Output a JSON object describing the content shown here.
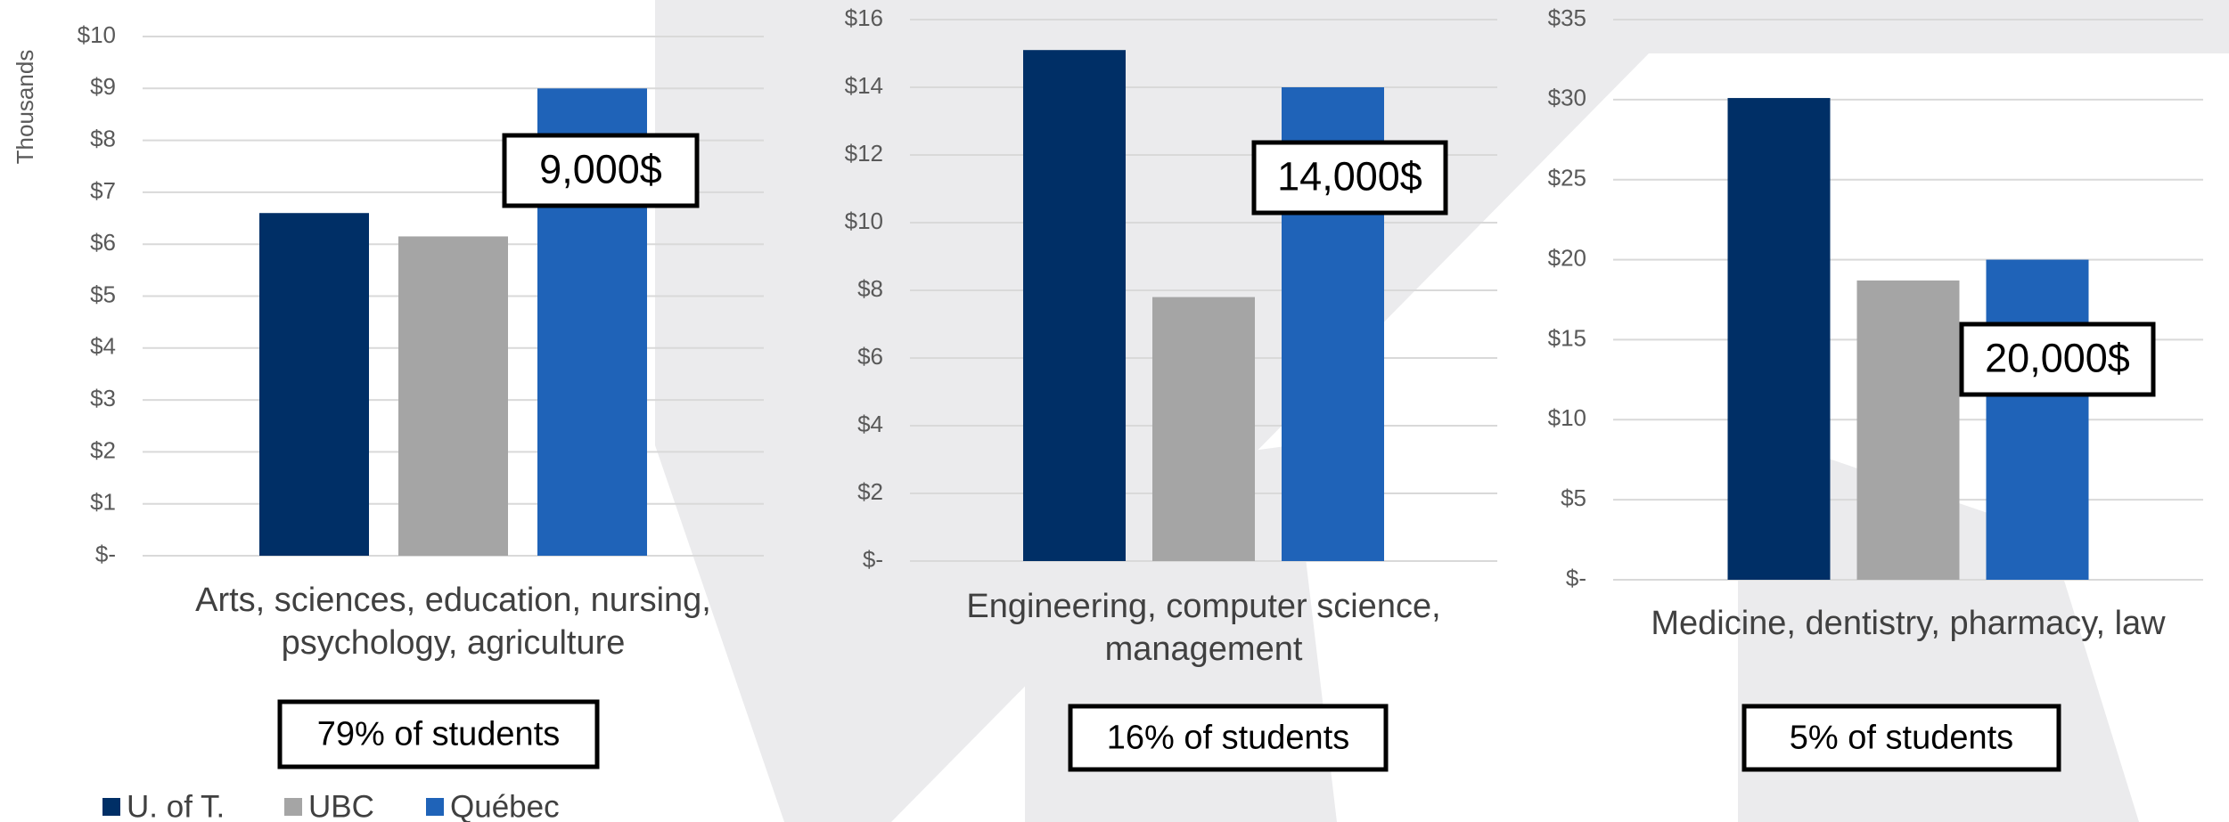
{
  "chart_data": [
    {
      "type": "bar",
      "categories": [
        "Arts, sciences, education, nursing, psychology, agriculture"
      ],
      "y_axis_label": "Thousands",
      "series": [
        {
          "name": "U. of T.",
          "color": "#002f66",
          "values": [
            6.6
          ]
        },
        {
          "name": "UBC",
          "color": "#a5a5a5",
          "values": [
            6.15
          ]
        },
        {
          "name": "Québec",
          "color": "#1f63b8",
          "values": [
            9
          ]
        }
      ],
      "ylim": [
        0,
        10
      ],
      "yticks": [
        {
          "value": 0,
          "label": "$-"
        },
        {
          "value": 1,
          "label": "$1"
        },
        {
          "value": 2,
          "label": "$2"
        },
        {
          "value": 3,
          "label": "$3"
        },
        {
          "value": 4,
          "label": "$4"
        },
        {
          "value": 5,
          "label": "$5"
        },
        {
          "value": 6,
          "label": "$6"
        },
        {
          "value": 7,
          "label": "$7"
        },
        {
          "value": 8,
          "label": "$8"
        },
        {
          "value": 9,
          "label": "$9"
        },
        {
          "value": 10,
          "label": "$10"
        }
      ],
      "grid": true,
      "annotation": "9,000$",
      "note": "79% of students"
    },
    {
      "type": "bar",
      "categories": [
        "Engineering, computer science, management"
      ],
      "series": [
        {
          "color": "#002f66",
          "values": [
            15.1
          ]
        },
        {
          "color": "#a5a5a5",
          "values": [
            7.8
          ]
        },
        {
          "color": "#1f63b8",
          "values": [
            14
          ]
        }
      ],
      "ylim": [
        0,
        16
      ],
      "yticks": [
        {
          "value": 0,
          "label": "$-"
        },
        {
          "value": 2,
          "label": "$2"
        },
        {
          "value": 4,
          "label": "$4"
        },
        {
          "value": 6,
          "label": "$6"
        },
        {
          "value": 8,
          "label": "$8"
        },
        {
          "value": 10,
          "label": "$10"
        },
        {
          "value": 12,
          "label": "$12"
        },
        {
          "value": 14,
          "label": "$14"
        },
        {
          "value": 16,
          "label": "$16"
        }
      ],
      "grid": true,
      "annotation": "14,000$",
      "note": "16% of students"
    },
    {
      "type": "bar",
      "categories": [
        "Medicine, dentistry, pharmacy, law"
      ],
      "series": [
        {
          "color": "#002f66",
          "values": [
            30.1
          ]
        },
        {
          "color": "#a5a5a5",
          "values": [
            18.7
          ]
        },
        {
          "color": "#1f63b8",
          "values": [
            20
          ]
        }
      ],
      "ylim": [
        0,
        35
      ],
      "yticks": [
        {
          "value": 0,
          "label": "$-"
        },
        {
          "value": 5,
          "label": "$5"
        },
        {
          "value": 10,
          "label": "$10"
        },
        {
          "value": 15,
          "label": "$15"
        },
        {
          "value": 20,
          "label": "$20"
        },
        {
          "value": 25,
          "label": "$25"
        },
        {
          "value": 30,
          "label": "$30"
        },
        {
          "value": 35,
          "label": "$35"
        }
      ],
      "grid": true,
      "annotation": "20,000$",
      "note": "5% of students"
    }
  ]
}
